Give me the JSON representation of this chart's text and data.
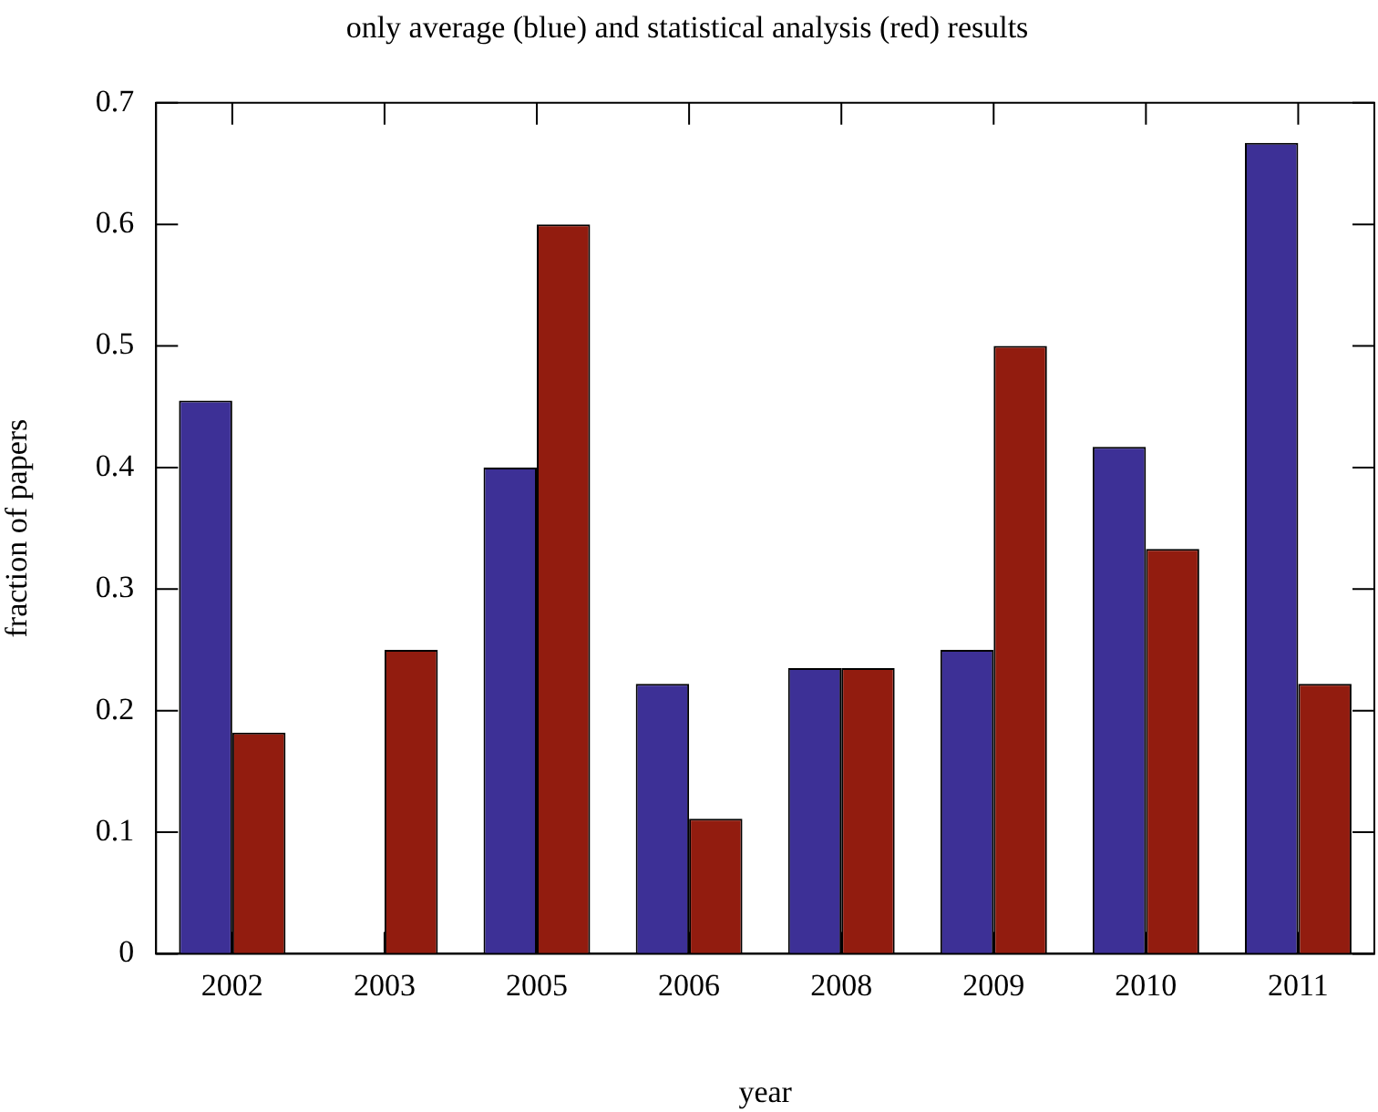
{
  "chart_data": {
    "type": "bar",
    "title": "only average (blue) and statistical analysis (red) results",
    "xlabel": "year",
    "ylabel": "fraction of papers",
    "categories": [
      "2002",
      "2003",
      "2005",
      "2006",
      "2008",
      "2009",
      "2010",
      "2011"
    ],
    "series": [
      {
        "color": "#3d3096",
        "values": [
          0.455,
          0,
          0.4,
          0.222,
          0.235,
          0.25,
          0.417,
          0.667
        ]
      },
      {
        "color": "#921c0f",
        "values": [
          0.182,
          0.25,
          0.6,
          0.111,
          0.235,
          0.5,
          0.333,
          0.222
        ]
      }
    ],
    "ylim": [
      0,
      0.7
    ],
    "yticks": [
      0,
      0.1,
      0.2,
      0.3,
      0.4,
      0.5,
      0.6,
      0.7
    ],
    "grid": false,
    "legend": false
  }
}
